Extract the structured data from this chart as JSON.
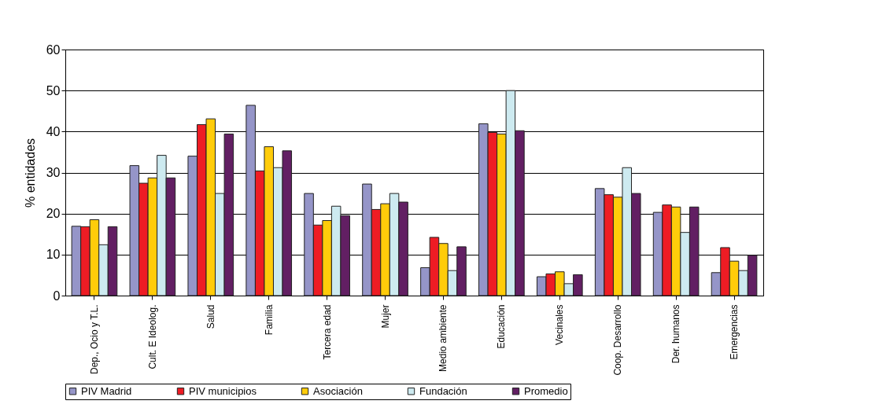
{
  "chart_data": {
    "type": "bar",
    "ylabel": "% entidades",
    "categories": [
      "Dep., Ocio y T.L.",
      "Cult. E Ideolog.",
      "Salud",
      "Familia",
      "Tercera edad",
      "Mujer",
      "Medio ambiente",
      "Educación",
      "Vecinales",
      "Coop. Desarrollo",
      "Der. humanos",
      "Emergencias"
    ],
    "series": [
      {
        "name": "PIV Madrid",
        "color": "#9595c8",
        "values": [
          16.9,
          31.7,
          34.0,
          46.4,
          24.9,
          27.2,
          6.8,
          41.9,
          4.6,
          26.1,
          20.3,
          5.6
        ]
      },
      {
        "name": "PIV municipios",
        "color": "#ee1c24",
        "values": [
          16.8,
          27.4,
          41.7,
          30.4,
          17.2,
          21.0,
          14.2,
          39.8,
          5.3,
          24.6,
          22.1,
          11.7
        ]
      },
      {
        "name": "Asociación",
        "color": "#ffcc0a",
        "values": [
          18.5,
          28.7,
          43.1,
          36.3,
          18.3,
          22.4,
          12.7,
          39.4,
          5.8,
          24.0,
          21.6,
          8.4
        ]
      },
      {
        "name": "Fundación",
        "color": "#cdeaf0",
        "values": [
          12.4,
          34.2,
          24.9,
          31.2,
          21.8,
          24.9,
          6.1,
          50.0,
          2.9,
          31.2,
          15.4,
          6.1
        ]
      },
      {
        "name": "Promedio",
        "color": "#621f63",
        "values": [
          16.8,
          28.7,
          39.4,
          35.3,
          19.5,
          22.8,
          11.9,
          40.2,
          5.1,
          24.9,
          21.6,
          9.8
        ]
      }
    ],
    "ylim": [
      0,
      60
    ],
    "yticks": [
      0,
      10,
      20,
      30,
      40,
      50,
      60
    ],
    "grid": "y",
    "legend": "bottom"
  }
}
